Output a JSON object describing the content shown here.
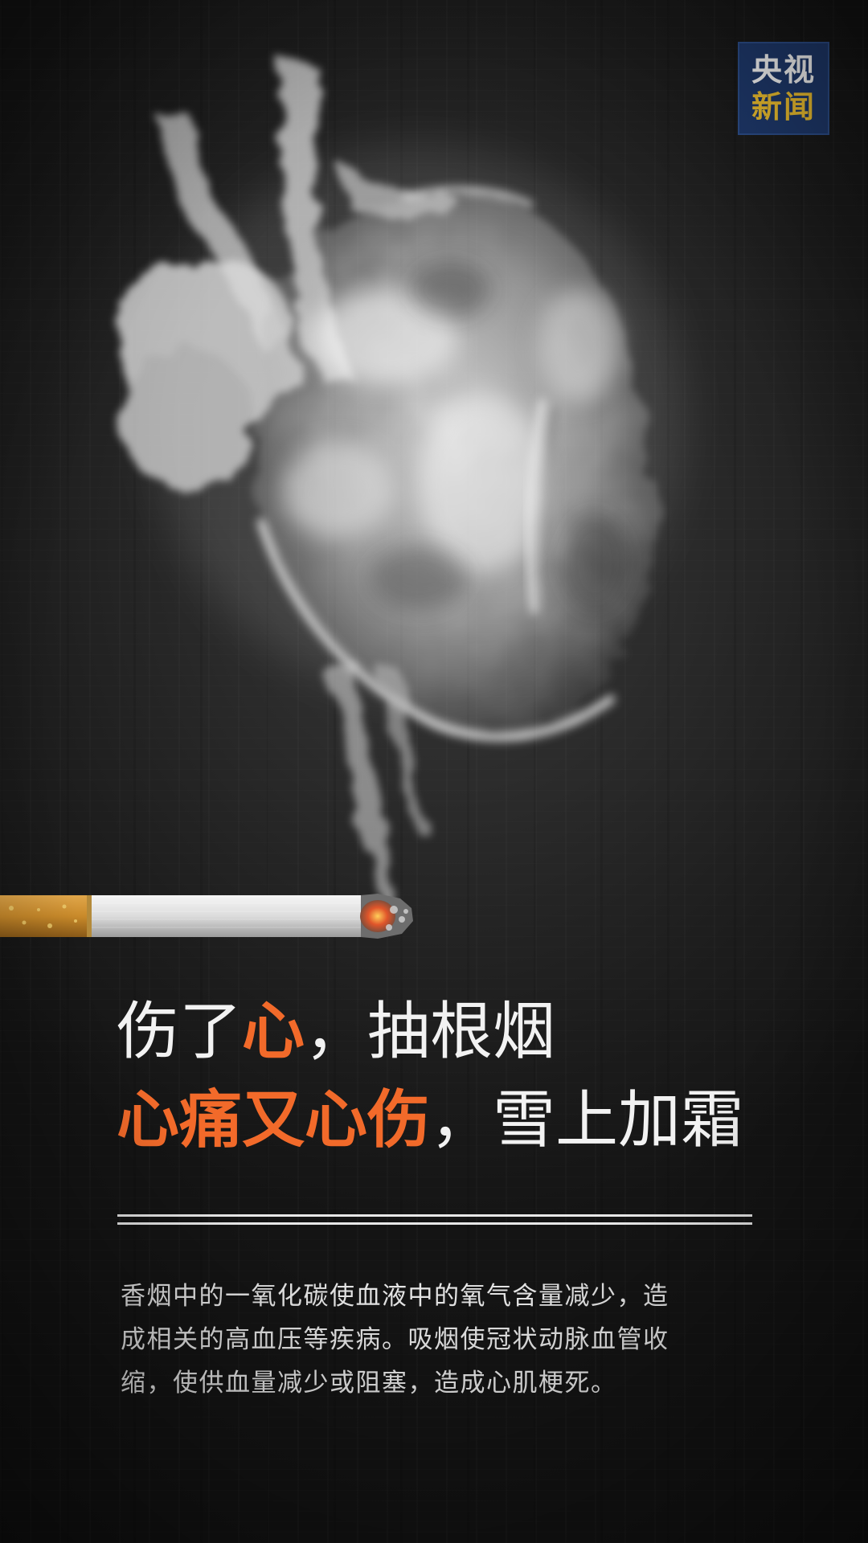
{
  "logo": {
    "line1": "央视",
    "line2": "新闻"
  },
  "headline": {
    "line1": [
      {
        "text": "伤了",
        "style": "white"
      },
      {
        "text": "心",
        "style": "orange"
      },
      {
        "text": "，抽根烟",
        "style": "white"
      }
    ],
    "line2": [
      {
        "text": "心痛又心伤",
        "style": "orange"
      },
      {
        "text": "，雪上加霜",
        "style": "white"
      }
    ]
  },
  "body": {
    "lines": [
      "香烟中的一氧化碳使血液中的氧气含量减少，造",
      "成相关的高血压等疾病。吸烟使冠状动脉血管收",
      "缩，使供血量减少或阻塞，造成心肌梗死。"
    ]
  },
  "colors": {
    "accent_orange": "#f26a2a",
    "text_white": "#f2f2f2",
    "logo_blue": "#1f3a6e",
    "background": "#1c1c1c"
  }
}
